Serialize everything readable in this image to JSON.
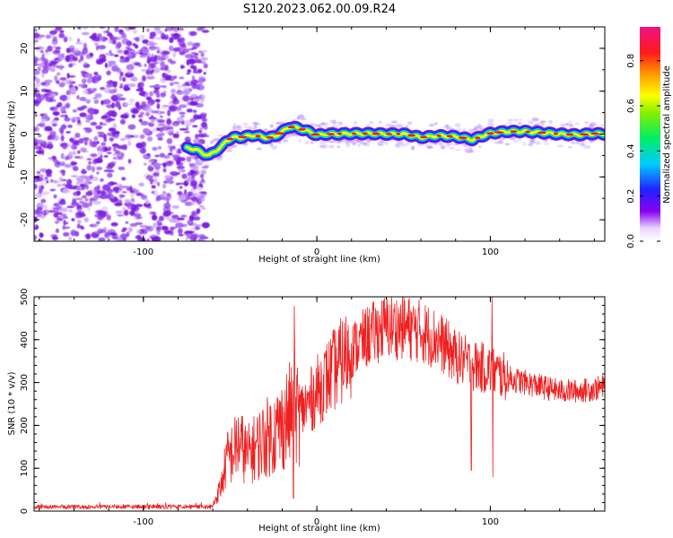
{
  "title": "S120.2023.062.00.09.R24",
  "chart_data": [
    {
      "type": "heatmap",
      "xlabel": "Height of straight line (km)",
      "ylabel": "Frequency (Hz)",
      "xlim": [
        -163,
        166
      ],
      "ylim": [
        -25,
        25
      ],
      "xticks": [
        -100,
        0,
        100
      ],
      "yticks": [
        -20,
        -10,
        0,
        10,
        20
      ],
      "colorbar": {
        "label": "Normalized spectral amplitude",
        "range": [
          0,
          0.95
        ],
        "ticks": [
          0,
          0.2,
          0.4,
          0.6,
          0.8
        ],
        "tick_labels": [
          "0.0",
          "0.2",
          "0.4",
          "0.6",
          "0.8"
        ],
        "colormap": [
          "#ffffff",
          "#7700ee",
          "#2222ff",
          "#00ddff",
          "#00ee00",
          "#ffff00",
          "#ff7700",
          "#ff0000",
          "#ee1188"
        ]
      },
      "noise_region": {
        "x": [
          -163,
          -68
        ],
        "y": [
          -25,
          25
        ]
      },
      "ridge": {
        "x": [
          -75,
          -70,
          -66,
          -62,
          -58,
          -55,
          -52,
          -48,
          -44,
          -40,
          -36,
          -32,
          -28,
          -24,
          -20,
          -16,
          -12,
          -8,
          -4,
          0,
          5,
          10,
          20,
          30,
          40,
          50,
          60,
          70,
          80,
          90,
          95,
          100,
          110,
          120,
          130,
          140,
          150,
          160,
          166
        ],
        "y": [
          -3.3,
          -3.5,
          -4.5,
          -5.0,
          -3.8,
          -3.0,
          -1.5,
          -0.8,
          -0.8,
          -0.5,
          -0.3,
          -0.6,
          -0.9,
          -0.5,
          0.5,
          1.7,
          1.5,
          1.0,
          0.5,
          -0.3,
          0.0,
          0.0,
          0.1,
          0.1,
          0.0,
          0.0,
          -0.8,
          -0.4,
          -0.6,
          -1.3,
          -0.5,
          0.2,
          0.6,
          0.6,
          0.3,
          0.0,
          -0.2,
          0.1,
          0.0
        ]
      },
      "colors": {
        "noise": "#7b1fe0",
        "ridge_core": "#ff1a1a"
      }
    },
    {
      "type": "line",
      "xlabel": "Height of straight line (km)",
      "ylabel": "SNR (10 * v/v)",
      "xlim": [
        -163,
        166
      ],
      "ylim": [
        0,
        500
      ],
      "xticks": [
        -100,
        0,
        100
      ],
      "yticks": [
        0,
        100,
        200,
        300,
        400,
        500
      ],
      "series": [
        {
          "color": "#ee2020",
          "envelope_x": [
            -163,
            -60,
            -55,
            -52,
            -48,
            -45,
            -40,
            -35,
            -30,
            -25,
            -20,
            -15,
            -10,
            -5,
            0,
            10,
            20,
            30,
            40,
            50,
            60,
            70,
            80,
            90,
            100,
            110,
            120,
            130,
            140,
            150,
            160,
            166
          ],
          "envelope_y": [
            10,
            12,
            60,
            120,
            140,
            160,
            130,
            150,
            170,
            180,
            200,
            230,
            230,
            250,
            280,
            330,
            375,
            410,
            430,
            430,
            420,
            400,
            360,
            340,
            330,
            310,
            300,
            290,
            280,
            280,
            285,
            290
          ],
          "spikes": [
            {
              "x": -13,
              "y": 478
            },
            {
              "x": -13.5,
              "y": 30
            },
            {
              "x": 101,
              "y": 500
            },
            {
              "x": 101.5,
              "y": 80
            },
            {
              "x": 89,
              "y": 95
            }
          ]
        }
      ]
    }
  ]
}
